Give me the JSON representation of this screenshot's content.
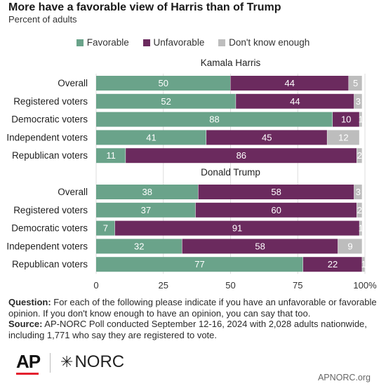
{
  "title": "More have a favorable view of Harris than of Trump",
  "subtitle": "Percent of adults",
  "colors": {
    "favorable": "#6aa38a",
    "unfavorable": "#6b2a5e",
    "dont_know": "#bdbdbd"
  },
  "chart_data": {
    "type": "bar",
    "orientation": "horizontal",
    "stacked": true,
    "xlim": [
      0,
      100
    ],
    "xticks": [
      "0",
      "25",
      "50",
      "75",
      "100%"
    ],
    "xtick_values": [
      0,
      25,
      50,
      75,
      100
    ],
    "legend_position": "top",
    "grid": true,
    "series_names": [
      "Favorable",
      "Unfavorable",
      "Don't know enough"
    ],
    "categories": [
      "Overall",
      "Registered voters",
      "Democratic voters",
      "Independent voters",
      "Republican voters"
    ],
    "panels": [
      {
        "title": "Kamala Harris",
        "rows": [
          {
            "favorable": 50,
            "unfavorable": 44,
            "dont_know": 5
          },
          {
            "favorable": 52,
            "unfavorable": 44,
            "dont_know": 3
          },
          {
            "favorable": 88,
            "unfavorable": 10,
            "dont_know": 1
          },
          {
            "favorable": 41,
            "unfavorable": 45,
            "dont_know": 12
          },
          {
            "favorable": 11,
            "unfavorable": 86,
            "dont_know": 2
          }
        ]
      },
      {
        "title": "Donald Trump",
        "rows": [
          {
            "favorable": 38,
            "unfavorable": 58,
            "dont_know": 3
          },
          {
            "favorable": 37,
            "unfavorable": 60,
            "dont_know": 2
          },
          {
            "favorable": 7,
            "unfavorable": 91,
            "dont_know": 1
          },
          {
            "favorable": 32,
            "unfavorable": 58,
            "dont_know": 9
          },
          {
            "favorable": 77,
            "unfavorable": 22,
            "dont_know": 1
          }
        ]
      }
    ]
  },
  "footnote": {
    "question_label": "Question:",
    "question_text": " For each of the following please indicate if you have an unfavorable or favorable opinion. If you don't know enough to have an opinion, you can say that too.",
    "source_label": "Source:",
    "source_text": " AP-NORC Poll conducted September 12-16, 2024 with 2,028 adults nationwide, including 1,771 who say they are registered to vote."
  },
  "logos": {
    "ap": "AP",
    "norc": "NORC",
    "norc_star": "✳"
  },
  "site": "APNORC.org"
}
